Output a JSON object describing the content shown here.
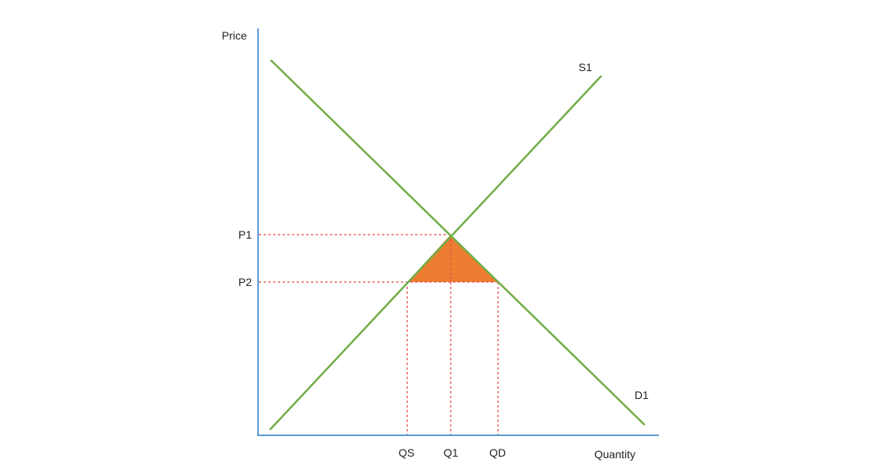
{
  "axes": {
    "y_label": "Price",
    "x_label": "Quantity"
  },
  "curves": {
    "supply_label": "S1",
    "demand_label": "D1"
  },
  "price_levels": {
    "p1": "P1",
    "p2": "P2"
  },
  "quantity_levels": {
    "qs": "QS",
    "q1": "Q1",
    "qd": "QD"
  },
  "colors": {
    "axis": "#5b9bd5",
    "curve": "#70ad47",
    "guide": "#e84b4b",
    "shaded_area": "#ed7d31"
  }
}
